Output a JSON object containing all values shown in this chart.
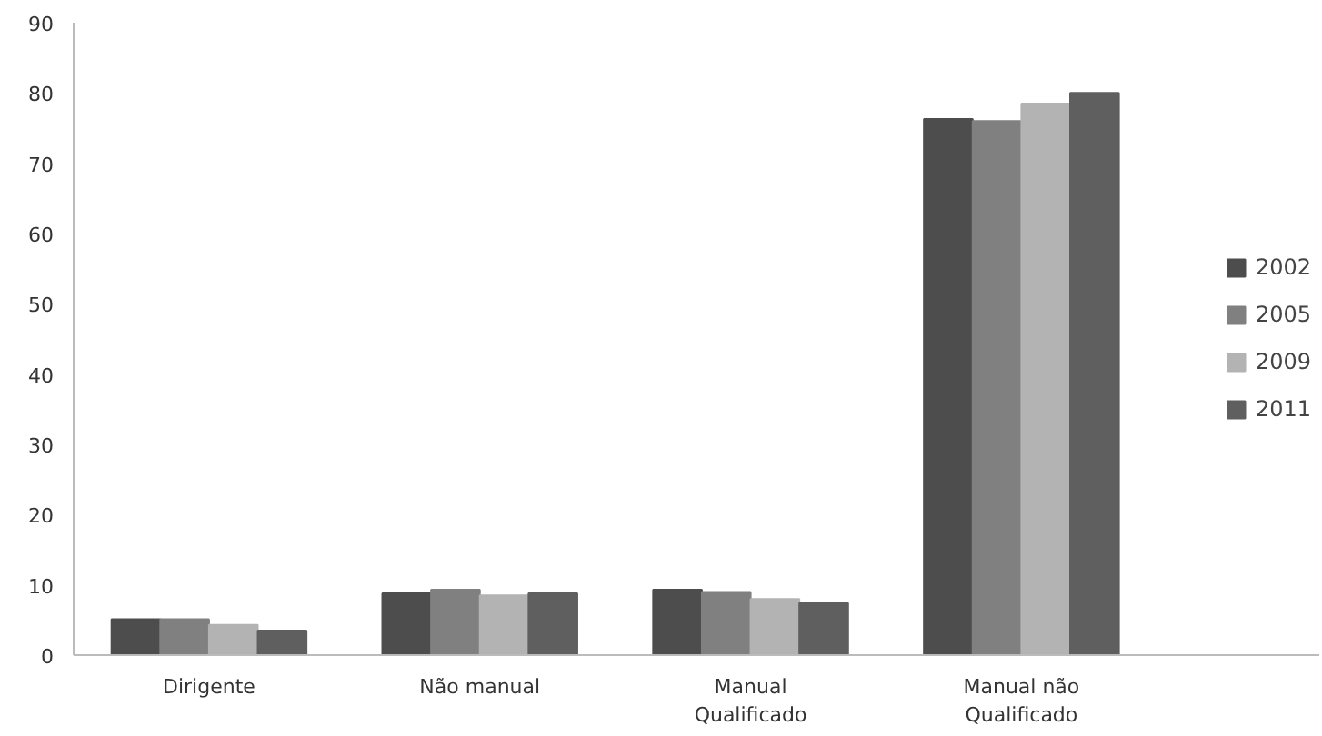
{
  "chart_data": {
    "type": "bar",
    "categories": [
      "Dirigente",
      "Não manual",
      "Manual\nQualificado",
      "Manual não\nQualificado"
    ],
    "series": [
      {
        "name": "2002",
        "color": "#4d4d4d",
        "values": [
          5.1,
          8.8,
          9.3,
          76.3
        ]
      },
      {
        "name": "2005",
        "color": "#808080",
        "values": [
          5.1,
          9.3,
          9.0,
          76.0
        ]
      },
      {
        "name": "2009",
        "color": "#b3b3b3",
        "values": [
          4.3,
          8.5,
          8.0,
          78.5
        ]
      },
      {
        "name": "2011",
        "color": "#5f5f5f",
        "values": [
          3.5,
          8.8,
          7.4,
          80.0
        ]
      }
    ],
    "ylim": [
      0,
      90
    ],
    "yticks": [
      0,
      10,
      20,
      30,
      40,
      50,
      60,
      70,
      80,
      90
    ],
    "grid": false,
    "legend": "right"
  }
}
